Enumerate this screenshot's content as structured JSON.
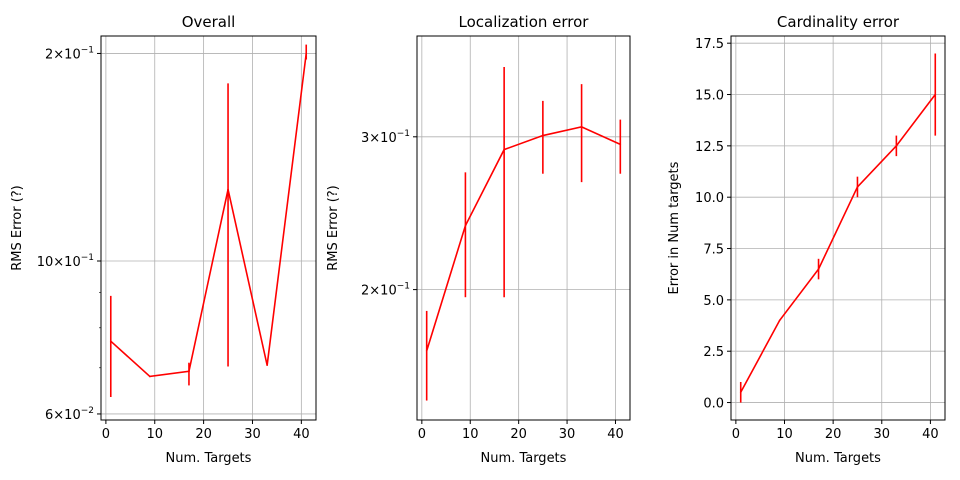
{
  "chart_data": [
    {
      "type": "line",
      "title": "Overall",
      "xlabel": "Num. Targets",
      "ylabel": "RMS Error (?)",
      "yscale": "log",
      "xlim": [
        -1.0,
        43.0
      ],
      "ylim": [
        0.0588,
        0.212
      ],
      "grid": true,
      "color": "#ff0000",
      "xticks": [
        0,
        10,
        20,
        30,
        40
      ],
      "yticks": [
        {
          "value": 0.06,
          "base": "6",
          "exp": "−2"
        },
        {
          "value": 0.1,
          "base": "10",
          "exp": "−1"
        },
        {
          "value": 0.2,
          "base": "2",
          "exp": "−1"
        }
      ],
      "x": [
        1,
        9,
        17,
        25,
        33,
        41
      ],
      "y": [
        0.0765,
        0.068,
        0.0692,
        0.127,
        0.0706,
        0.2
      ],
      "err_low": [
        0.0635,
        null,
        0.066,
        0.0703,
        null,
        0.196
      ],
      "err_high": [
        0.089,
        null,
        0.0712,
        0.181,
        null,
        0.206
      ]
    },
    {
      "type": "line",
      "title": "Localization error",
      "xlabel": "Num. Targets",
      "ylabel": "RMS Error (?)",
      "yscale": "log",
      "xlim": [
        -1.0,
        43.0
      ],
      "ylim": [
        0.1415,
        0.392
      ],
      "grid": true,
      "color": "#ff0000",
      "xticks": [
        0,
        10,
        20,
        30,
        40
      ],
      "yticks": [
        {
          "value": 0.2,
          "base": "2",
          "exp": "−1"
        },
        {
          "value": 0.3,
          "base": "3",
          "exp": "−1"
        }
      ],
      "x": [
        1,
        9,
        17,
        25,
        33,
        41
      ],
      "y": [
        0.17,
        0.237,
        0.29,
        0.301,
        0.308,
        0.294
      ],
      "err_low": [
        0.149,
        0.196,
        0.196,
        0.272,
        0.266,
        0.272
      ],
      "err_high": [
        0.189,
        0.273,
        0.361,
        0.33,
        0.345,
        0.314
      ]
    },
    {
      "type": "line",
      "title": "Cardinality error",
      "xlabel": "Num. Targets",
      "ylabel": "Error in Num targets",
      "yscale": "linear",
      "xlim": [
        -1.0,
        43.0
      ],
      "ylim": [
        -0.85,
        17.85
      ],
      "grid": true,
      "color": "#ff0000",
      "xticks": [
        0,
        10,
        20,
        30,
        40
      ],
      "yticks": [
        {
          "value": 0.0,
          "label": "0.0"
        },
        {
          "value": 2.5,
          "label": "2.5"
        },
        {
          "value": 5.0,
          "label": "5.0"
        },
        {
          "value": 7.5,
          "label": "7.5"
        },
        {
          "value": 10.0,
          "label": "10.0"
        },
        {
          "value": 12.5,
          "label": "12.5"
        },
        {
          "value": 15.0,
          "label": "15.0"
        },
        {
          "value": 17.5,
          "label": "17.5"
        }
      ],
      "x": [
        1,
        9,
        17,
        25,
        33,
        41
      ],
      "y": [
        0.5,
        4.0,
        6.5,
        10.5,
        12.5,
        15.0
      ],
      "err_low": [
        0.0,
        null,
        6.0,
        10.0,
        12.0,
        13.0
      ],
      "err_high": [
        1.0,
        null,
        7.0,
        11.0,
        13.0,
        17.0
      ]
    }
  ]
}
